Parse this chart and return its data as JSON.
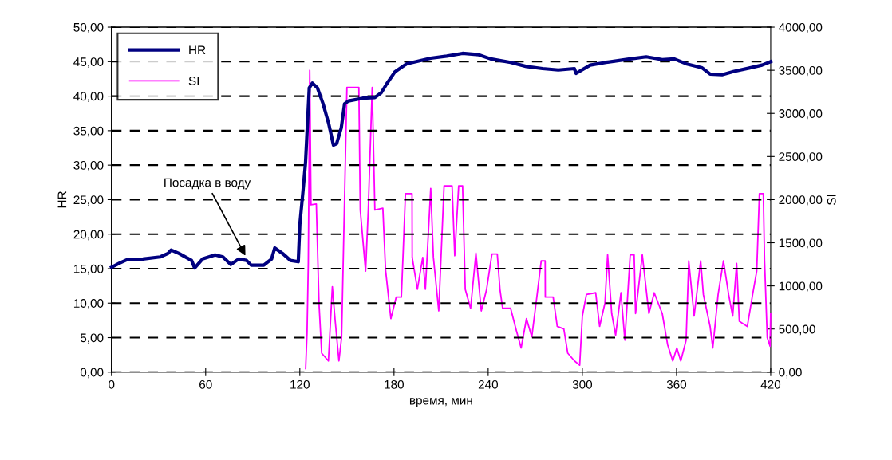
{
  "chart_data": {
    "type": "line",
    "xlabel": "время, мин",
    "ylabel": "HR",
    "y2label": "SI",
    "xlim": [
      0,
      420
    ],
    "xticks": [
      0,
      60,
      120,
      180,
      240,
      300,
      360,
      420
    ],
    "ylim": [
      0,
      50
    ],
    "yticks": [
      {
        "value": 0,
        "label": "0,00"
      },
      {
        "value": 5,
        "label": "5,00"
      },
      {
        "value": 10,
        "label": "10,00"
      },
      {
        "value": 15,
        "label": "15,00"
      },
      {
        "value": 20,
        "label": "20,00"
      },
      {
        "value": 25,
        "label": "25,00"
      },
      {
        "value": 30,
        "label": "30,00"
      },
      {
        "value": 35,
        "label": "35,00"
      },
      {
        "value": 40,
        "label": "40,00"
      },
      {
        "value": 45,
        "label": "45,00"
      },
      {
        "value": 50,
        "label": "50,00"
      }
    ],
    "y2lim": [
      0,
      4000
    ],
    "y2ticks": [
      {
        "value": 0,
        "label": "0,00"
      },
      {
        "value": 500,
        "label": "500,00"
      },
      {
        "value": 1000,
        "label": "1000,00"
      },
      {
        "value": 1500,
        "label": "1500,00"
      },
      {
        "value": 2000,
        "label": "2000,00"
      },
      {
        "value": 2500,
        "label": "2500,00"
      },
      {
        "value": 3000,
        "label": "3000,00"
      },
      {
        "value": 3500,
        "label": "3500,00"
      },
      {
        "value": 4000,
        "label": "4000,00"
      }
    ],
    "grid": "y",
    "legend": "top left",
    "marker": "none",
    "line_style": "solid",
    "annotations": [
      {
        "text": "Посадка в воду",
        "x": 86,
        "y": 16.6
      }
    ],
    "series": [
      {
        "name": "HR",
        "color": "#000080",
        "x": [
          0,
          5,
          10,
          20,
          31,
          36,
          38,
          43,
          51,
          53,
          58,
          66,
          71,
          76,
          81,
          86,
          89,
          97,
          102,
          104,
          109,
          114,
          119,
          120,
          122,
          123.6,
          126,
          128,
          131.2,
          134.8,
          138.4,
          141.4,
          143.4,
          146.4,
          148.5,
          151,
          160,
          167.8,
          171.9,
          175.4,
          180.5,
          188.1,
          203.4,
          213.6,
          223.7,
          234,
          241.6,
          254.3,
          264.4,
          274.6,
          284.7,
          294.9,
          296,
          305,
          315,
          330.5,
          340.7,
          350.9,
          358.5,
          366.1,
          376.3,
          381.4,
          389,
          396.7,
          406.8,
          414.5,
          420
        ],
        "values": [
          15.2,
          15.8,
          16.3,
          16.4,
          16.7,
          17.2,
          17.7,
          17.2,
          16.2,
          15.1,
          16.4,
          17,
          16.7,
          15.6,
          16.4,
          16.2,
          15.5,
          15.5,
          16.4,
          18,
          17.2,
          16.2,
          16,
          21.4,
          26.2,
          30.3,
          41.2,
          41.9,
          41.2,
          38.9,
          36,
          32.9,
          33.1,
          35.4,
          38.9,
          39.3,
          39.7,
          39.8,
          40.5,
          41.8,
          43.5,
          44.7,
          45.5,
          45.8,
          46.2,
          46,
          45.4,
          44.9,
          44.3,
          44,
          43.8,
          44,
          43.3,
          44.5,
          44.9,
          45.4,
          45.7,
          45.3,
          45.4,
          44.7,
          44.1,
          43.2,
          43.1,
          43.6,
          44.1,
          44.5,
          45
        ]
      },
      {
        "name": "SI",
        "color": "#ff00ff",
        "axis": "y2",
        "x": [
          123.7,
          124.6,
          125.4,
          126.3,
          127.1,
          130.5,
          132.2,
          133.9,
          138.2,
          140.7,
          142.4,
          144.9,
          146.6,
          148.3,
          150,
          157.6,
          158.5,
          161.9,
          163.6,
          166.1,
          167.8,
          172.9,
          174.6,
          178,
          181.4,
          184.7,
          187.3,
          191.5,
          191.6,
          194.9,
          198.3,
          200,
          203.4,
          205.1,
          208.5,
          211.9,
          217,
          218.7,
          221.2,
          223.7,
          225.4,
          228.8,
          232.2,
          235.6,
          239,
          242.4,
          245.8,
          247.5,
          249.2,
          254.3,
          257.7,
          261,
          264.4,
          267.8,
          271.2,
          273.8,
          276.3,
          276.4,
          281.4,
          284,
          288.2,
          290.7,
          295,
          298.3,
          300,
          302.6,
          308.5,
          311,
          314.4,
          316.1,
          318.7,
          321.2,
          324.6,
          327.1,
          330.5,
          333,
          333.9,
          338.2,
          342.4,
          345.8,
          350.9,
          354.3,
          357.6,
          360.2,
          362.7,
          366.1,
          367.8,
          371.2,
          375.4,
          377.1,
          381.4,
          383.1,
          386.5,
          389.9,
          393.2,
          395.8,
          398.3,
          400,
          405.1,
          408.5,
          411.1,
          412.8,
          415.3,
          416.1,
          417.8,
          419.6,
          420
        ],
        "values": [
          40,
          460,
          1270,
          3500,
          1940,
          1950,
          800,
          220,
          130,
          990,
          620,
          130,
          400,
          1850,
          3300,
          3300,
          1880,
          1170,
          1880,
          3300,
          1880,
          1900,
          1190,
          620,
          870,
          870,
          2070,
          2070,
          1330,
          960,
          1330,
          960,
          2130,
          1330,
          710,
          2160,
          2160,
          1350,
          2160,
          2160,
          960,
          740,
          1380,
          710,
          960,
          1370,
          1370,
          960,
          740,
          740,
          500,
          280,
          620,
          410,
          900,
          1290,
          1290,
          870,
          870,
          530,
          500,
          220,
          130,
          80,
          650,
          900,
          920,
          530,
          800,
          1360,
          680,
          430,
          920,
          370,
          1360,
          1360,
          680,
          1360,
          680,
          920,
          680,
          320,
          130,
          280,
          130,
          370,
          1290,
          650,
          1290,
          900,
          530,
          280,
          900,
          1290,
          900,
          650,
          1260,
          590,
          530,
          900,
          1170,
          2070,
          2070,
          1290,
          400,
          300,
          680
        ]
      }
    ]
  }
}
